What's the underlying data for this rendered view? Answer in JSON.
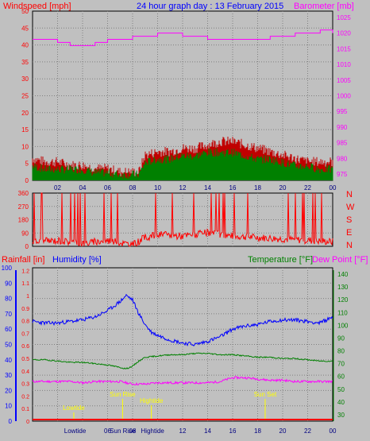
{
  "chart_data": [
    {
      "type": "line",
      "panel": "wind-barometer",
      "title": "24 hour graph day : 13 February 2015",
      "ylabel_left": "Windspeed [mph]",
      "ylabel_right": "Barometer [mb]",
      "x_ticks": [
        "02",
        "04",
        "06",
        "08",
        "10",
        "12",
        "14",
        "16",
        "18",
        "20",
        "22",
        "00"
      ],
      "y_left_ticks": [
        "0",
        "5",
        "10",
        "15",
        "20",
        "25",
        "30",
        "35",
        "40",
        "45",
        "50"
      ],
      "y_right_ticks": [
        "975",
        "980",
        "985",
        "990",
        "995",
        "1000",
        "1005",
        "1010",
        "1015",
        "1020",
        "1025"
      ],
      "ylim_left": [
        0,
        50
      ],
      "ylim_right": [
        973,
        1027
      ],
      "grid": true,
      "series": [
        {
          "key": "gust",
          "color": "#c00000",
          "hours": [
            0,
            1,
            2,
            3,
            4,
            5,
            6,
            7,
            8,
            8.5,
            9,
            10,
            11,
            12,
            13,
            14,
            15,
            16,
            17,
            18,
            19,
            20,
            21,
            22,
            23,
            24
          ],
          "values": [
            5,
            4,
            4,
            3,
            3,
            2,
            2,
            1,
            1,
            1,
            6,
            7,
            7,
            8,
            8,
            9,
            10,
            10,
            9,
            8,
            7,
            6,
            5,
            4,
            4,
            4
          ]
        },
        {
          "key": "average",
          "color": "#008000",
          "hours": [
            0,
            1,
            2,
            3,
            4,
            5,
            6,
            7,
            8,
            8.5,
            9,
            10,
            11,
            12,
            13,
            14,
            15,
            16,
            17,
            18,
            19,
            20,
            21,
            22,
            23,
            24
          ],
          "values": [
            3,
            2,
            2,
            2,
            2,
            1,
            1,
            0.5,
            0.5,
            0.5,
            4,
            5,
            5,
            6,
            6,
            7,
            7,
            7,
            6,
            5,
            5,
            4,
            3,
            3,
            2,
            2
          ]
        },
        {
          "key": "barometer",
          "color": "#ff00ff",
          "axis": "right",
          "hours": [
            0,
            1,
            2,
            3,
            4,
            5,
            6,
            7,
            8,
            9,
            10,
            11,
            12,
            13,
            14,
            15,
            16,
            17,
            18,
            19,
            20,
            21,
            22,
            23,
            24
          ],
          "values": [
            1018,
            1018,
            1017,
            1016,
            1016,
            1017,
            1018,
            1018,
            1019,
            1019,
            1020,
            1020,
            1019,
            1019,
            1018,
            1018,
            1018,
            1018,
            1018,
            1019,
            1019,
            1020,
            1020,
            1021,
            1020
          ]
        }
      ]
    },
    {
      "type": "line",
      "panel": "wind-direction",
      "y_ticks": [
        "0",
        "90",
        "180",
        "270",
        "360"
      ],
      "y_right_labels": [
        "N",
        "W",
        "S",
        "E",
        "N"
      ],
      "ylim": [
        0,
        360
      ],
      "series": [
        {
          "key": "direction",
          "color": "#ff0000",
          "hours": [
            0,
            2,
            4,
            6,
            8,
            9,
            10,
            12,
            14,
            16,
            18,
            20,
            22,
            24
          ],
          "values": [
            30,
            40,
            20,
            40,
            10,
            60,
            80,
            70,
            90,
            70,
            60,
            50,
            40,
            30
          ]
        }
      ]
    },
    {
      "type": "line",
      "panel": "rain-humidity-temp",
      "ylabel_rain": "Rainfall [in]",
      "ylabel_humidity": "Humidity [%]",
      "ylabel_temp": "Temperature [°F]",
      "ylabel_dew": "Dew Point [°F]",
      "y_humidity_ticks": [
        "0",
        "10",
        "20",
        "30",
        "40",
        "50",
        "60",
        "70",
        "80",
        "90",
        "100"
      ],
      "y_rain_ticks": [
        "0",
        "0.1",
        "0.2",
        "0.3",
        "0.4",
        "0.5",
        "0.6",
        "0.7",
        "0.8",
        "0.9",
        "1",
        "1.1",
        "1.2"
      ],
      "y_temp_ticks": [
        "30",
        "40",
        "50",
        "60",
        "70",
        "80",
        "90",
        "100",
        "110",
        "120",
        "130",
        "140"
      ],
      "x_ticks": [
        "Lowtide",
        "06",
        "Sun Rise",
        "08",
        "Hightide",
        "12",
        "14",
        "16",
        "18",
        "20",
        "22",
        "00"
      ],
      "ylim_humidity": [
        0,
        100
      ],
      "ylim_temp": [
        25,
        145
      ],
      "annotations": [
        {
          "label": "Lowtide",
          "hour": 3.3
        },
        {
          "label": "Sun Rise",
          "hour": 7.2
        },
        {
          "label": "Hightide",
          "hour": 9.5
        },
        {
          "label": "Sun Set",
          "hour": 18.6
        }
      ],
      "series": [
        {
          "key": "humidity",
          "color": "#0000ff",
          "axis": "humidity",
          "hours": [
            0,
            1,
            2,
            3,
            4,
            5,
            5.5,
            6,
            6.5,
            7,
            7.5,
            8,
            8.5,
            9,
            9.5,
            10,
            11,
            12,
            13,
            14,
            15,
            16,
            17,
            18,
            19,
            20,
            21,
            22,
            23,
            24
          ],
          "values": [
            65,
            64,
            64,
            65,
            66,
            68,
            70,
            72,
            75,
            78,
            82,
            79,
            70,
            63,
            58,
            56,
            53,
            51,
            50,
            52,
            55,
            60,
            62,
            63,
            65,
            66,
            66,
            65,
            64,
            68
          ]
        },
        {
          "key": "temperature",
          "color": "#008000",
          "axis": "temp",
          "hours": [
            0,
            1,
            2,
            3,
            4,
            5,
            6,
            7,
            7.5,
            8,
            8.5,
            9,
            10,
            11,
            12,
            13,
            14,
            15,
            16,
            17,
            18,
            19,
            20,
            21,
            22,
            23,
            24
          ],
          "values": [
            73,
            73,
            72,
            71,
            71,
            70,
            69,
            67,
            66,
            68,
            72,
            75,
            76,
            77,
            77,
            78,
            78,
            77,
            77,
            76,
            75,
            75,
            74,
            74,
            73,
            72,
            72
          ]
        },
        {
          "key": "dewpoint",
          "color": "#ff00ff",
          "axis": "temp",
          "hours": [
            0,
            1,
            2,
            3,
            4,
            5,
            6,
            7,
            8,
            9,
            10,
            11,
            12,
            13,
            14,
            15,
            16,
            17,
            18,
            19,
            20,
            21,
            22,
            23,
            24
          ],
          "values": [
            56,
            56,
            56,
            56,
            55,
            56,
            56,
            56,
            54,
            54,
            55,
            55,
            55,
            55,
            55,
            56,
            59,
            59,
            58,
            57,
            57,
            56,
            56,
            56,
            56
          ]
        },
        {
          "key": "rain",
          "color": "#ff0000",
          "axis": "rain",
          "hours": [
            0,
            24
          ],
          "values": [
            0,
            0
          ]
        }
      ]
    }
  ]
}
